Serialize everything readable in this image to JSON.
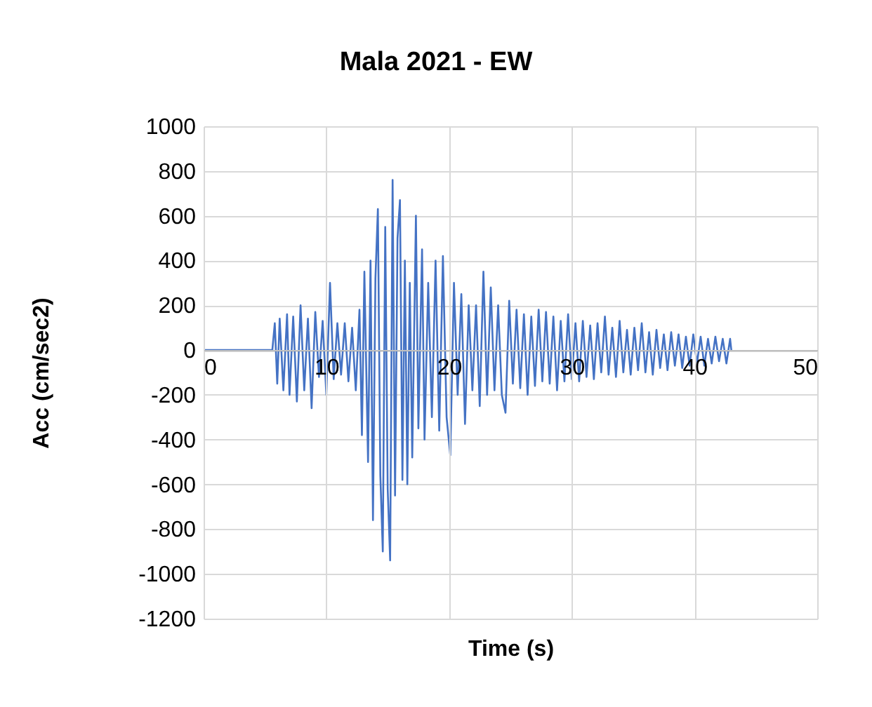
{
  "chart_data": {
    "type": "line",
    "title": "Mala 2021 - EW",
    "xlabel": "Time (s)",
    "ylabel": "Acc (cm/sec2)",
    "x": [
      0,
      5.5,
      5.6,
      5.8,
      6.0,
      6.2,
      6.5,
      6.8,
      7.0,
      7.3,
      7.6,
      7.9,
      8.2,
      8.5,
      8.8,
      9.1,
      9.4,
      9.7,
      10.0,
      10.3,
      10.6,
      10.9,
      11.2,
      11.5,
      11.8,
      12.1,
      12.4,
      12.7,
      12.9,
      13.1,
      13.4,
      13.6,
      13.8,
      14.0,
      14.2,
      14.4,
      14.6,
      14.8,
      15.0,
      15.2,
      15.4,
      15.6,
      15.8,
      16.0,
      16.2,
      16.4,
      16.6,
      16.8,
      17.0,
      17.3,
      17.5,
      17.8,
      18.0,
      18.3,
      18.6,
      18.9,
      19.2,
      19.5,
      19.8,
      20.1,
      20.4,
      20.7,
      21.0,
      21.3,
      21.6,
      21.9,
      22.2,
      22.5,
      22.8,
      23.1,
      23.4,
      23.7,
      24.0,
      24.3,
      24.6,
      24.9,
      25.2,
      25.5,
      25.8,
      26.1,
      26.4,
      26.7,
      27.0,
      27.3,
      27.6,
      27.9,
      28.2,
      28.5,
      28.8,
      29.1,
      29.4,
      29.7,
      30.0,
      30.3,
      30.6,
      30.9,
      31.2,
      31.5,
      31.8,
      32.1,
      32.4,
      32.7,
      33.0,
      33.3,
      33.6,
      33.9,
      34.2,
      34.5,
      34.8,
      35.1,
      35.4,
      35.7,
      36.0,
      36.3,
      36.6,
      36.9,
      37.2,
      37.5,
      37.8,
      38.1,
      38.4,
      38.7,
      39.0,
      39.3,
      39.6,
      39.9,
      40.2,
      40.5,
      40.8,
      41.1,
      41.4,
      41.7,
      42.0,
      42.3,
      42.6,
      42.9,
      43.0
    ],
    "series": [
      {
        "color": "#4472c4",
        "values": [
          0,
          0,
          0,
          120,
          -150,
          140,
          -180,
          160,
          -200,
          150,
          -230,
          200,
          -180,
          140,
          -260,
          170,
          -120,
          130,
          -200,
          300,
          -130,
          120,
          -110,
          120,
          -140,
          100,
          -180,
          180,
          -380,
          350,
          -500,
          400,
          -760,
          320,
          630,
          -560,
          -900,
          550,
          -620,
          -940,
          760,
          -650,
          500,
          670,
          -580,
          400,
          -600,
          300,
          -480,
          600,
          -350,
          450,
          -400,
          300,
          -300,
          400,
          -360,
          420,
          -300,
          -470,
          300,
          -200,
          250,
          -330,
          200,
          -180,
          200,
          -250,
          350,
          -200,
          280,
          -180,
          200,
          -200,
          -280,
          220,
          -150,
          180,
          -170,
          160,
          -200,
          150,
          -160,
          180,
          -140,
          170,
          -150,
          150,
          -180,
          130,
          -140,
          160,
          -130,
          120,
          -140,
          130,
          -120,
          110,
          -130,
          120,
          -100,
          150,
          -110,
          100,
          -120,
          130,
          -100,
          90,
          -110,
          100,
          -90,
          120,
          -100,
          80,
          -110,
          90,
          -80,
          70,
          -90,
          80,
          -70,
          70,
          -80,
          60,
          -70,
          70,
          -60,
          60,
          -70,
          50,
          -60,
          60,
          -50,
          50,
          -60,
          50,
          0
        ]
      }
    ],
    "xlim": [
      0,
      50
    ],
    "xticks": [
      0,
      10,
      20,
      30,
      40,
      50
    ],
    "ylim": [
      -1200,
      1000
    ],
    "yticks": [
      -1200,
      -1000,
      -800,
      -600,
      -400,
      -200,
      0,
      200,
      400,
      600,
      800,
      1000
    ],
    "grid": true
  }
}
